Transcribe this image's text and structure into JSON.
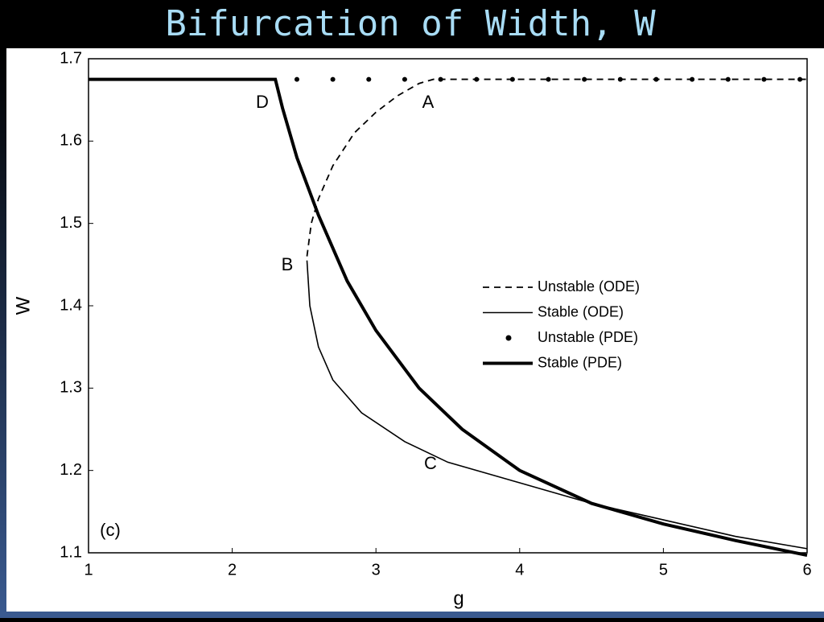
{
  "chart_data": {
    "type": "line",
    "title": "Bifurcation of Width, W",
    "xlabel": "g",
    "ylabel": "W",
    "xlim": [
      1,
      6
    ],
    "ylim": [
      1.1,
      1.7
    ],
    "xticks": [
      1,
      2,
      3,
      4,
      5,
      6
    ],
    "yticks": [
      1.1,
      1.2,
      1.3,
      1.4,
      1.5,
      1.6,
      1.7
    ],
    "legend": "center-right",
    "series": [
      {
        "name": "Unstable (ODE)",
        "color": "#000000",
        "style": "dashed",
        "x": [
          2.52,
          2.55,
          2.6,
          2.7,
          2.85,
          3.0,
          3.15,
          3.3,
          3.4,
          4,
          5,
          6
        ],
        "values": [
          1.46,
          1.5,
          1.53,
          1.57,
          1.61,
          1.635,
          1.655,
          1.67,
          1.675,
          1.675,
          1.675,
          1.675
        ]
      },
      {
        "name": "Stable (ODE)",
        "color": "#000000",
        "style": "solid",
        "x": [
          2.52,
          2.54,
          2.6,
          2.7,
          2.9,
          3.2,
          3.5,
          4,
          4.5,
          5,
          5.5,
          6
        ],
        "values": [
          1.455,
          1.4,
          1.35,
          1.31,
          1.27,
          1.235,
          1.21,
          1.185,
          1.16,
          1.14,
          1.12,
          1.105
        ]
      },
      {
        "name": "Unstable (PDE)",
        "color": "#000000",
        "style": "dots",
        "x": [
          2.45,
          2.7,
          2.95,
          3.2,
          3.45,
          3.7,
          3.95,
          4.2,
          4.45,
          4.7,
          4.95,
          5.2,
          5.45,
          5.7,
          5.95
        ],
        "values": [
          1.675,
          1.675,
          1.675,
          1.675,
          1.675,
          1.675,
          1.675,
          1.675,
          1.675,
          1.675,
          1.675,
          1.675,
          1.675,
          1.675,
          1.675
        ]
      },
      {
        "name": "Stable (PDE)",
        "color": "#000000",
        "style": "thick",
        "x": [
          1,
          2.3,
          2.35,
          2.45,
          2.6,
          2.8,
          3,
          3.3,
          3.6,
          4,
          4.5,
          5,
          5.5,
          6
        ],
        "values": [
          1.675,
          1.675,
          1.64,
          1.58,
          1.51,
          1.43,
          1.37,
          1.3,
          1.25,
          1.2,
          1.16,
          1.135,
          1.115,
          1.097
        ]
      }
    ],
    "annotations": [
      "D",
      "A",
      "B",
      "C",
      "(c)"
    ]
  }
}
